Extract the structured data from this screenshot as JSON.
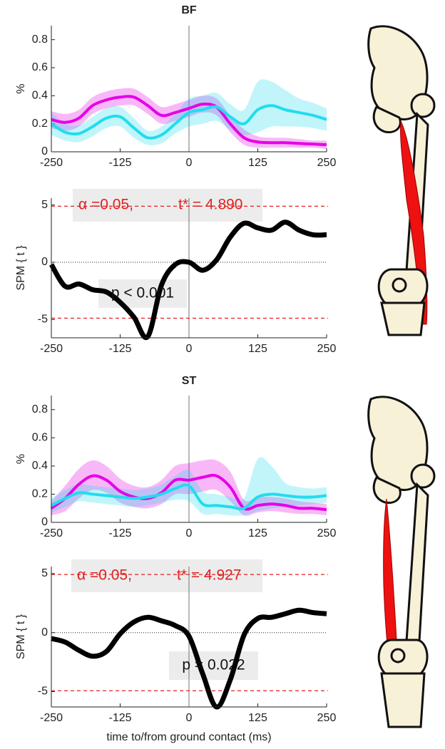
{
  "chart_data": [
    {
      "type": "line",
      "title": "BF",
      "ylabel": "%",
      "x": [
        -250,
        -225,
        -200,
        -175,
        -150,
        -125,
        -100,
        -75,
        -50,
        -25,
        0,
        25,
        50,
        75,
        100,
        125,
        150,
        175,
        200,
        225,
        250
      ],
      "xlim": [
        -250,
        250
      ],
      "xticks": [
        -250,
        -125,
        0,
        125,
        250
      ],
      "ylim": [
        0,
        0.9
      ],
      "yticks": [
        0,
        0.2,
        0.4,
        0.6,
        0.8
      ],
      "series": [
        {
          "color": "#e600e6",
          "values": [
            0.23,
            0.21,
            0.24,
            0.33,
            0.37,
            0.39,
            0.39,
            0.33,
            0.26,
            0.28,
            0.31,
            0.34,
            0.32,
            0.2,
            0.1,
            0.07,
            0.065,
            0.065,
            0.06,
            0.055,
            0.05
          ],
          "lower": [
            0.17,
            0.15,
            0.18,
            0.27,
            0.31,
            0.33,
            0.33,
            0.27,
            0.2,
            0.22,
            0.25,
            0.28,
            0.26,
            0.14,
            0.05,
            0.03,
            0.03,
            0.03,
            0.03,
            0.03,
            0.02
          ],
          "upper": [
            0.29,
            0.27,
            0.3,
            0.39,
            0.43,
            0.45,
            0.45,
            0.39,
            0.32,
            0.34,
            0.37,
            0.4,
            0.38,
            0.26,
            0.16,
            0.11,
            0.1,
            0.1,
            0.09,
            0.08,
            0.08
          ]
        },
        {
          "color": "#22dcee",
          "values": [
            0.2,
            0.14,
            0.13,
            0.18,
            0.24,
            0.25,
            0.17,
            0.1,
            0.12,
            0.2,
            0.28,
            0.3,
            0.32,
            0.25,
            0.2,
            0.3,
            0.33,
            0.3,
            0.28,
            0.26,
            0.23
          ],
          "lower": [
            0.12,
            0.08,
            0.07,
            0.11,
            0.17,
            0.18,
            0.1,
            0.05,
            0.06,
            0.13,
            0.18,
            0.2,
            0.22,
            0.16,
            0.12,
            0.14,
            0.18,
            0.18,
            0.18,
            0.17,
            0.15
          ],
          "upper": [
            0.28,
            0.2,
            0.19,
            0.25,
            0.31,
            0.32,
            0.24,
            0.15,
            0.18,
            0.27,
            0.38,
            0.4,
            0.42,
            0.34,
            0.3,
            0.5,
            0.5,
            0.44,
            0.38,
            0.35,
            0.31
          ]
        }
      ]
    },
    {
      "type": "line",
      "ylabel": "SPM { t }",
      "x": [
        -250,
        -225,
        -200,
        -175,
        -150,
        -125,
        -100,
        -75,
        -50,
        -25,
        0,
        25,
        50,
        75,
        100,
        125,
        150,
        175,
        200,
        225,
        250
      ],
      "xlim": [
        -250,
        250
      ],
      "xticks": [
        -250,
        -125,
        0,
        125,
        250
      ],
      "ylim": [
        -6.6,
        5.6
      ],
      "yticks": [
        -5,
        0,
        5
      ],
      "series": [
        {
          "color": "#000000",
          "values": [
            -0.2,
            -2.1,
            -1.9,
            -2.4,
            -2.6,
            -3.5,
            -4.8,
            -6.5,
            -2.0,
            -0.2,
            0.0,
            -0.7,
            0.2,
            2.2,
            3.4,
            3.0,
            2.8,
            3.5,
            2.8,
            2.4,
            2.4
          ]
        }
      ],
      "threshold_lines": [
        4.89,
        -4.89
      ],
      "alpha_label": "α =0.05,",
      "threshold_label": "t* = 4.890",
      "p_label": "p < 0.001"
    },
    {
      "type": "line",
      "title": "ST",
      "ylabel": "%",
      "x": [
        -250,
        -225,
        -200,
        -175,
        -150,
        -125,
        -100,
        -75,
        -50,
        -25,
        0,
        25,
        50,
        75,
        100,
        125,
        150,
        175,
        200,
        225,
        250
      ],
      "xlim": [
        -250,
        250
      ],
      "xticks": [
        -250,
        -125,
        0,
        125,
        250
      ],
      "ylim": [
        0,
        0.9
      ],
      "yticks": [
        0,
        0.2,
        0.4,
        0.6,
        0.8
      ],
      "series": [
        {
          "color": "#e600e6",
          "values": [
            0.1,
            0.17,
            0.27,
            0.33,
            0.3,
            0.22,
            0.18,
            0.17,
            0.21,
            0.3,
            0.3,
            0.32,
            0.33,
            0.25,
            0.1,
            0.12,
            0.13,
            0.12,
            0.1,
            0.1,
            0.09
          ],
          "lower": [
            0.05,
            0.08,
            0.17,
            0.23,
            0.21,
            0.14,
            0.11,
            0.1,
            0.13,
            0.2,
            0.2,
            0.22,
            0.23,
            0.15,
            0.05,
            0.07,
            0.08,
            0.07,
            0.06,
            0.06,
            0.05
          ],
          "upper": [
            0.15,
            0.26,
            0.38,
            0.44,
            0.4,
            0.31,
            0.26,
            0.25,
            0.3,
            0.4,
            0.42,
            0.44,
            0.44,
            0.36,
            0.16,
            0.18,
            0.18,
            0.17,
            0.15,
            0.14,
            0.13
          ]
        },
        {
          "color": "#22dcee",
          "values": [
            0.12,
            0.17,
            0.21,
            0.2,
            0.19,
            0.18,
            0.17,
            0.18,
            0.2,
            0.24,
            0.26,
            0.13,
            0.12,
            0.11,
            0.1,
            0.18,
            0.2,
            0.19,
            0.18,
            0.18,
            0.19
          ],
          "lower": [
            0.07,
            0.11,
            0.15,
            0.14,
            0.13,
            0.12,
            0.11,
            0.12,
            0.14,
            0.16,
            0.15,
            0.06,
            0.06,
            0.05,
            0.05,
            0.08,
            0.1,
            0.11,
            0.12,
            0.13,
            0.14
          ],
          "upper": [
            0.17,
            0.23,
            0.27,
            0.26,
            0.25,
            0.24,
            0.23,
            0.24,
            0.27,
            0.33,
            0.37,
            0.22,
            0.2,
            0.18,
            0.17,
            0.45,
            0.4,
            0.28,
            0.25,
            0.24,
            0.25
          ]
        }
      ]
    },
    {
      "type": "line",
      "ylabel": "SPM { t }",
      "xlabel": "time to/from ground contact (ms)",
      "x": [
        -250,
        -225,
        -200,
        -175,
        -150,
        -125,
        -100,
        -75,
        -50,
        -25,
        0,
        25,
        50,
        75,
        100,
        125,
        150,
        175,
        200,
        225,
        250
      ],
      "xlim": [
        -250,
        250
      ],
      "xticks": [
        -250,
        -125,
        0,
        125,
        250
      ],
      "ylim": [
        -6.3,
        5.6
      ],
      "yticks": [
        -5,
        0,
        5
      ],
      "series": [
        {
          "color": "#000000",
          "values": [
            -0.5,
            -0.8,
            -1.5,
            -2.0,
            -1.6,
            -0.1,
            0.9,
            1.3,
            1.0,
            0.6,
            -0.3,
            -3.5,
            -6.3,
            -4.0,
            -0.2,
            1.2,
            1.3,
            1.6,
            1.9,
            1.7,
            1.6
          ]
        }
      ],
      "threshold_lines": [
        4.927,
        -4.927
      ],
      "alpha_label": "α =0.05,",
      "threshold_label": "t* = 4.927",
      "p_label": "p = 0.022"
    }
  ]
}
